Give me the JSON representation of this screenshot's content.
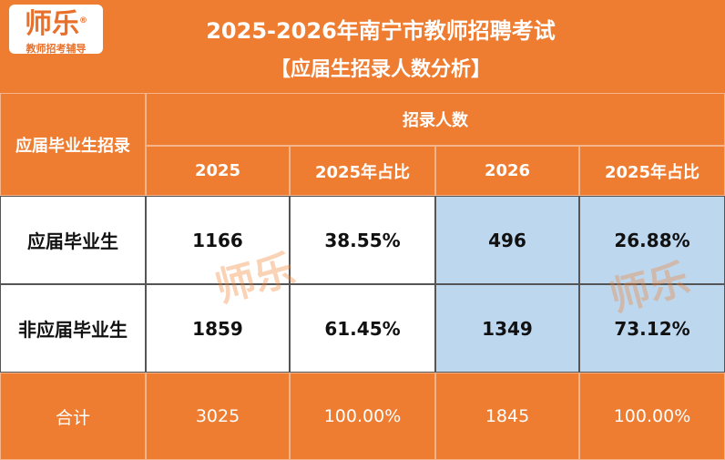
{
  "logo": {
    "name": "师乐",
    "mark": "®",
    "tagline": "教师招考辅导"
  },
  "header": {
    "title": "2025-2026年南宁市教师招聘考试",
    "subtitle": "【应届生招录人数分析】"
  },
  "table": {
    "corner": "应届毕业生招录",
    "group": "招录人数",
    "columns": [
      "2025",
      "2025年占比",
      "2026",
      "2025年占比"
    ],
    "rows": [
      [
        "应届毕业生",
        "1166",
        "38.55%",
        "496",
        "26.88%"
      ],
      [
        "非应届毕业生",
        "1859",
        "61.45%",
        "1349",
        "73.12%"
      ]
    ],
    "total": [
      "合计",
      "3025",
      "100.00%",
      "1845",
      "100.00%"
    ]
  },
  "watermark": "师乐"
}
